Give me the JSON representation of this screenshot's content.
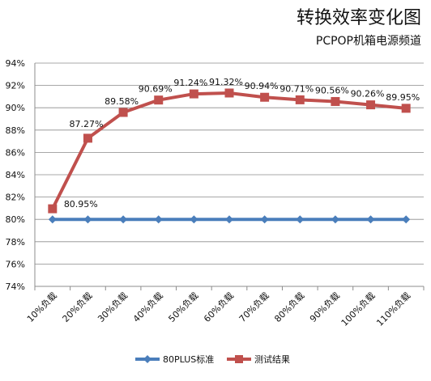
{
  "chart_data": {
    "type": "line",
    "title": "转换效率变化图",
    "subtitle": "PCPOP机箱电源频道",
    "categories": [
      "10%负载",
      "20%负载",
      "30%负载",
      "40%负载",
      "50%负载",
      "60%负载",
      "70%负载",
      "80%负载",
      "90%负载",
      "100%负载",
      "110%负载"
    ],
    "series": [
      {
        "name": "80PLUS标准",
        "values": [
          80,
          80,
          80,
          80,
          80,
          80,
          80,
          80,
          80,
          80,
          80
        ],
        "color": "#4a7ebb",
        "marker": "diamond"
      },
      {
        "name": "测试结果",
        "values": [
          80.95,
          87.27,
          89.58,
          90.69,
          91.24,
          91.32,
          90.94,
          90.71,
          90.56,
          90.26,
          89.95
        ],
        "color": "#c0504d",
        "marker": "square",
        "labels": [
          "80.95%",
          "87.27%",
          "89.58%",
          "90.69%",
          "91.24%",
          "91.32%",
          "90.94%",
          "90.71%",
          "90.56%",
          "90.26%",
          "89.95%"
        ]
      }
    ],
    "ylim": [
      74,
      94
    ],
    "yticks": [
      "74%",
      "76%",
      "78%",
      "80%",
      "82%",
      "84%",
      "86%",
      "88%",
      "90%",
      "92%",
      "94%"
    ],
    "grid": true,
    "legend": "bottom"
  }
}
